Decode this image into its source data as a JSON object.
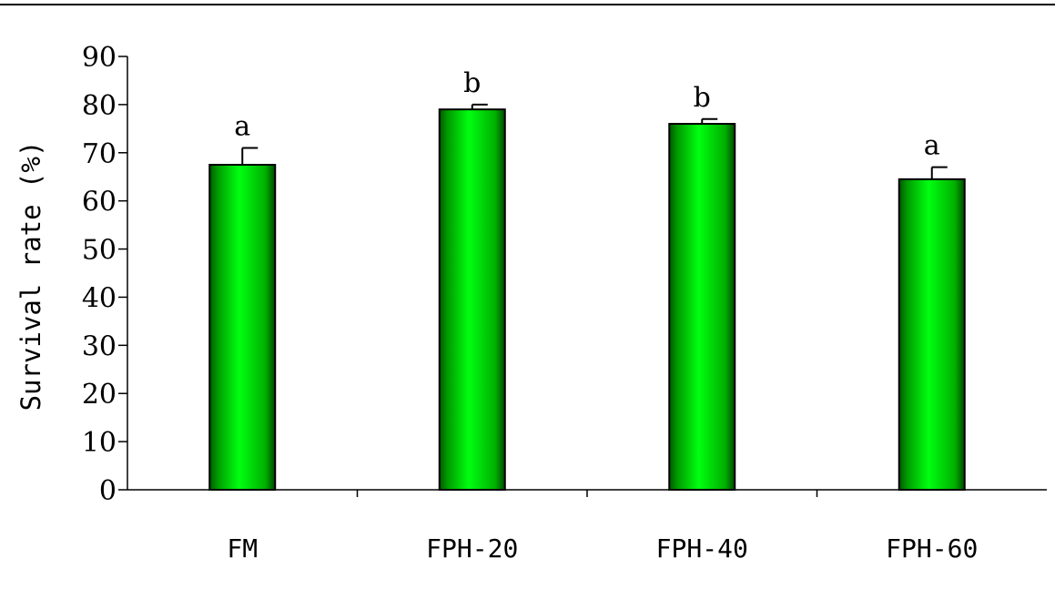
{
  "chart_data": {
    "type": "bar",
    "categories": [
      "FM",
      "FPH-20",
      "FPH-40",
      "FPH-60"
    ],
    "values": [
      67.5,
      79,
      76,
      64.5
    ],
    "errors": [
      3.5,
      1,
      1,
      2.5
    ],
    "significance": [
      "a",
      "b",
      "b",
      "a"
    ],
    "title": "",
    "xlabel": "",
    "ylabel": "Survival rate (%)",
    "ylim": [
      0,
      90
    ],
    "yticks": [
      0,
      10,
      20,
      30,
      40,
      50,
      60,
      70,
      80,
      90
    ],
    "grid": false,
    "legend": "none",
    "bar_color": "#00e000",
    "bar_edge_color": "#000000"
  }
}
